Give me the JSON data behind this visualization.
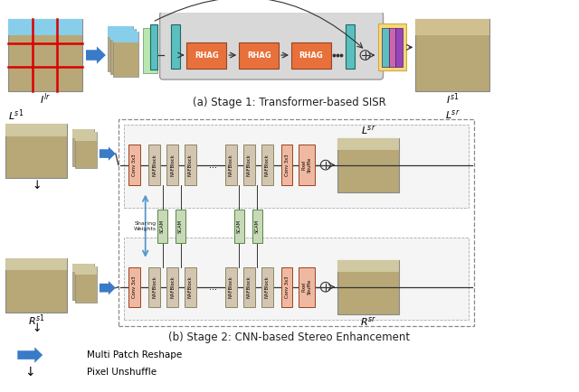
{
  "bg_color": "#ffffff",
  "fig_width": 6.4,
  "fig_height": 4.34,
  "stage1_label": "(a) Stage 1: Transformer-based SISR",
  "stage2_label": "(b) Stage 2: CNN-based Stereo Enhancement",
  "legend_reshape": "Multi Patch Reshape",
  "legend_unshuffle": "Pixel Unshuffle",
  "rhag_color": "#e8703a",
  "nafblock_color": "#d4c5b0",
  "scam_color": "#c8d9b8",
  "conv_color": "#f0b8a0",
  "green_block_color": "#82c882",
  "teal_block_color": "#5bbfbf",
  "arrow_blue": "#3a7bc8",
  "line_color": "#333333",
  "yellow_bg": "#f5d878",
  "purple1": "#cc66aa",
  "purple2": "#9944bb",
  "purple3": "#6633cc",
  "gray_box": "#d8d8d8",
  "img_stone": "#c8b888",
  "img_stone2": "#b8a878"
}
